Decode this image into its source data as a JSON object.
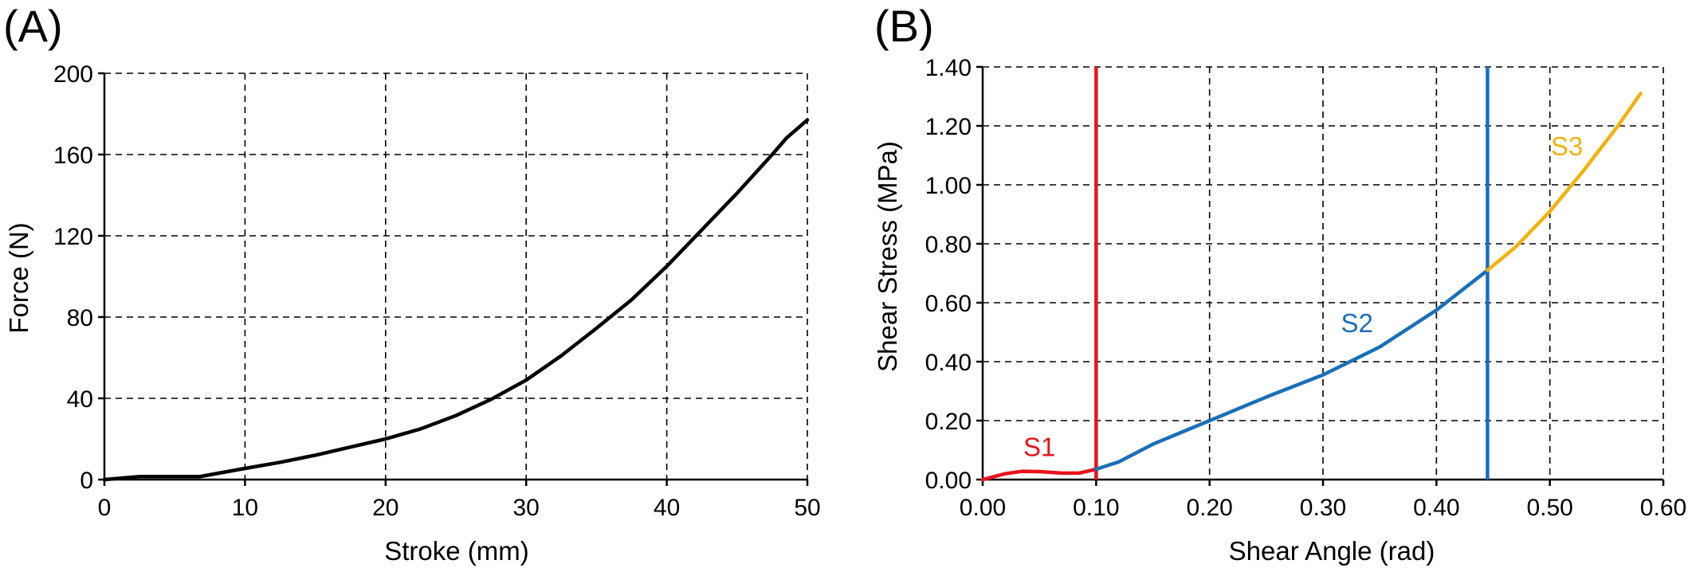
{
  "chart_data": [
    {
      "panel_label": "(A)",
      "type": "line",
      "xlabel": "Stroke (mm)",
      "ylabel": "Force (N)",
      "xlim": [
        0,
        50
      ],
      "ylim": [
        0,
        200
      ],
      "xticks": [
        0,
        10,
        20,
        30,
        40,
        50
      ],
      "yticks": [
        0,
        40,
        80,
        120,
        160,
        200
      ],
      "xtick_labels": [
        "0",
        "10",
        "20",
        "30",
        "40",
        "50"
      ],
      "ytick_labels": [
        "0",
        "40",
        "80",
        "120",
        "160",
        "200"
      ],
      "grid": true,
      "series": [
        {
          "color": "#000000",
          "x": [
            0,
            2.5,
            5,
            6.8,
            8,
            10,
            12.5,
            15,
            17.5,
            20,
            22.5,
            25,
            27.5,
            30,
            32.5,
            35,
            37.5,
            40,
            42.5,
            45,
            47.5,
            48.5,
            50
          ],
          "y": [
            0,
            1.5,
            1.5,
            1.5,
            3,
            5.5,
            8.5,
            12,
            16,
            20,
            25,
            31.5,
            39.5,
            49,
            61,
            74.5,
            88.5,
            105,
            123,
            141,
            160,
            168,
            177
          ]
        }
      ]
    },
    {
      "panel_label": "(B)",
      "type": "line",
      "xlabel": "Shear Angle (rad)",
      "ylabel": "Shear Stress (MPa)",
      "xlim": [
        0,
        0.6
      ],
      "ylim": [
        0,
        1.4
      ],
      "xticks": [
        0,
        0.1,
        0.2,
        0.3,
        0.4,
        0.5,
        0.6
      ],
      "yticks": [
        0,
        0.2,
        0.4,
        0.6,
        0.8,
        1.0,
        1.2,
        1.4
      ],
      "xtick_labels": [
        "0.00",
        "0.10",
        "0.20",
        "0.30",
        "0.40",
        "0.50",
        "0.60"
      ],
      "ytick_labels": [
        "0.00",
        "0.20",
        "0.40",
        "0.60",
        "0.80",
        "1.00",
        "1.20",
        "1.40"
      ],
      "grid": true,
      "vlines": [
        {
          "x": 0.1,
          "color": "#e8141c"
        },
        {
          "x": 0.445,
          "color": "#1a6fb8"
        }
      ],
      "series": [
        {
          "color": "#e8141c",
          "label": "S1",
          "label_at": [
            0.05,
            0.08
          ],
          "x": [
            0,
            0.01,
            0.02,
            0.035,
            0.05,
            0.07,
            0.085,
            0.1
          ],
          "y": [
            0,
            0.01,
            0.02,
            0.028,
            0.027,
            0.022,
            0.022,
            0.035
          ]
        },
        {
          "color": "#1a6fb8",
          "label": "S2",
          "label_at": [
            0.33,
            0.5
          ],
          "x": [
            0.1,
            0.12,
            0.15,
            0.2,
            0.25,
            0.3,
            0.35,
            0.4,
            0.445
          ],
          "y": [
            0.035,
            0.06,
            0.12,
            0.2,
            0.28,
            0.355,
            0.45,
            0.575,
            0.71
          ]
        },
        {
          "color": "#f2b20e",
          "label": "S3",
          "label_at": [
            0.515,
            1.1
          ],
          "x": [
            0.445,
            0.47,
            0.5,
            0.53,
            0.56,
            0.58
          ],
          "y": [
            0.71,
            0.79,
            0.91,
            1.05,
            1.2,
            1.31
          ]
        }
      ]
    }
  ]
}
